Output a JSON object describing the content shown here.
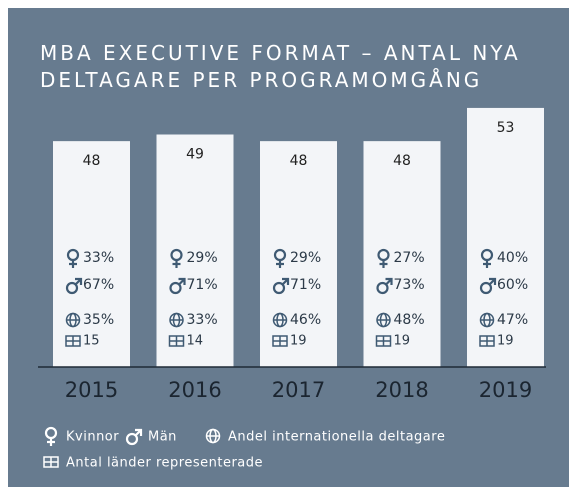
{
  "chart_data": {
    "type": "bar",
    "title": "MBA EXECUTIVE FORMAT – ANTAL NYA DELTAGARE PER PROGRAMOMGÅNG",
    "categories": [
      "2015",
      "2016",
      "2017",
      "2018",
      "2019"
    ],
    "values": [
      48,
      49,
      48,
      48,
      53
    ],
    "color": "#f3f5f8",
    "ylim": [
      14,
      56
    ],
    "series": [
      {
        "name": "Kvinnor",
        "values": [
          33,
          29,
          29,
          27,
          40
        ],
        "value_labels": [
          "33%",
          "29%",
          "29%",
          "27%",
          "40%"
        ]
      },
      {
        "name": "Män",
        "values": [
          67,
          71,
          71,
          73,
          60
        ],
        "value_labels": [
          "67%",
          "71%",
          "71%",
          "73%",
          "60%"
        ]
      },
      {
        "name": "Andel internationella deltagare",
        "values": [
          35,
          33,
          46,
          48,
          47
        ],
        "value_labels": [
          "35%",
          "33%",
          "46%",
          "48%",
          "47%"
        ]
      },
      {
        "name": "Antal länder representerade",
        "values": [
          15,
          14,
          19,
          19,
          19
        ]
      }
    ]
  }
}
